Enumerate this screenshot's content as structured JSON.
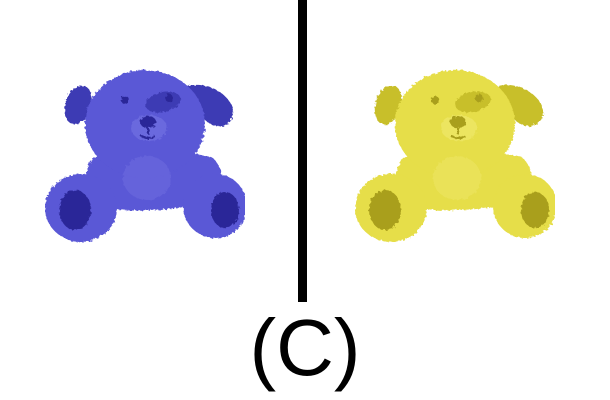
{
  "figure": {
    "caption": "(C)",
    "divider_color": "#000000",
    "panels": [
      {
        "subject": "plush-dog-blue",
        "colors": {
          "body": "#5a58d6",
          "shadow": "#3e3bb4",
          "dark": "#2c2898",
          "light": "#7a79e6"
        }
      },
      {
        "subject": "plush-dog-yellow",
        "colors": {
          "body": "#e6de48",
          "shadow": "#c8bf2c",
          "dark": "#a99f1c",
          "light": "#f2ec78"
        }
      }
    ]
  }
}
